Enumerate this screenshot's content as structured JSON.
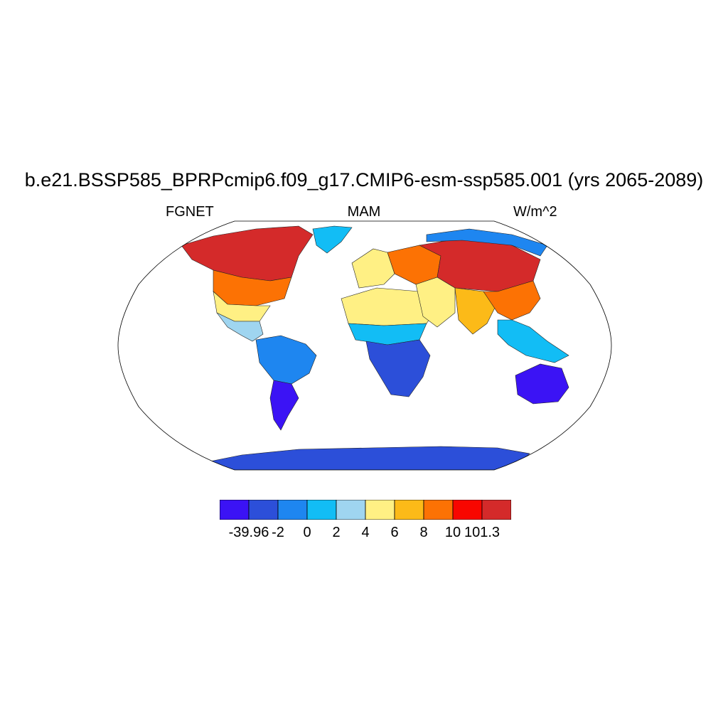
{
  "title": "b.e21.BSSP585_BPRPcmip6.f09_g17.CMIP6-esm-ssp585.001 (yrs 2065-2089)",
  "left_string": "FGNET",
  "center_string": "MAM",
  "right_string": "W/m^2",
  "colorbar": {
    "colors": [
      "#3b13f5",
      "#2c4fd9",
      "#1e86f0",
      "#12bdf5",
      "#9fd5f0",
      "#fff084",
      "#fcba18",
      "#fc7204",
      "#f80600",
      "#d42a2a"
    ],
    "labels": [
      "-39.96",
      "-2",
      "0",
      "2",
      "4",
      "6",
      "8",
      "10",
      "101.3"
    ]
  },
  "regions": [
    {
      "name": "Canada / Hudson Bay",
      "level": 9
    },
    {
      "name": "Eastern USA",
      "level": 7
    },
    {
      "name": "Southern USA",
      "level": 5
    },
    {
      "name": "Mexico / Central America",
      "level": 4
    },
    {
      "name": "Greenland",
      "level": 3
    },
    {
      "name": "Amazon / Northern South America",
      "level": 2
    },
    {
      "name": "Southern South America",
      "level": 0
    },
    {
      "name": "Sahara",
      "level": 5
    },
    {
      "name": "Sahel",
      "level": 3
    },
    {
      "name": "Central / Southern Africa",
      "level": 1
    },
    {
      "name": "Western Europe",
      "level": 5
    },
    {
      "name": "Eastern Europe / Western Russia",
      "level": 7
    },
    {
      "name": "Siberia / Central Asia",
      "level": 9
    },
    {
      "name": "Middle East",
      "level": 5
    },
    {
      "name": "India / South Asia",
      "level": 6
    },
    {
      "name": "China",
      "level": 7
    },
    {
      "name": "Southeast Asia / Maritime",
      "level": 3
    },
    {
      "name": "Arctic Siberia coast",
      "level": 2
    },
    {
      "name": "Australia",
      "level": 0
    },
    {
      "name": "Antarctica",
      "level": 1
    }
  ]
}
